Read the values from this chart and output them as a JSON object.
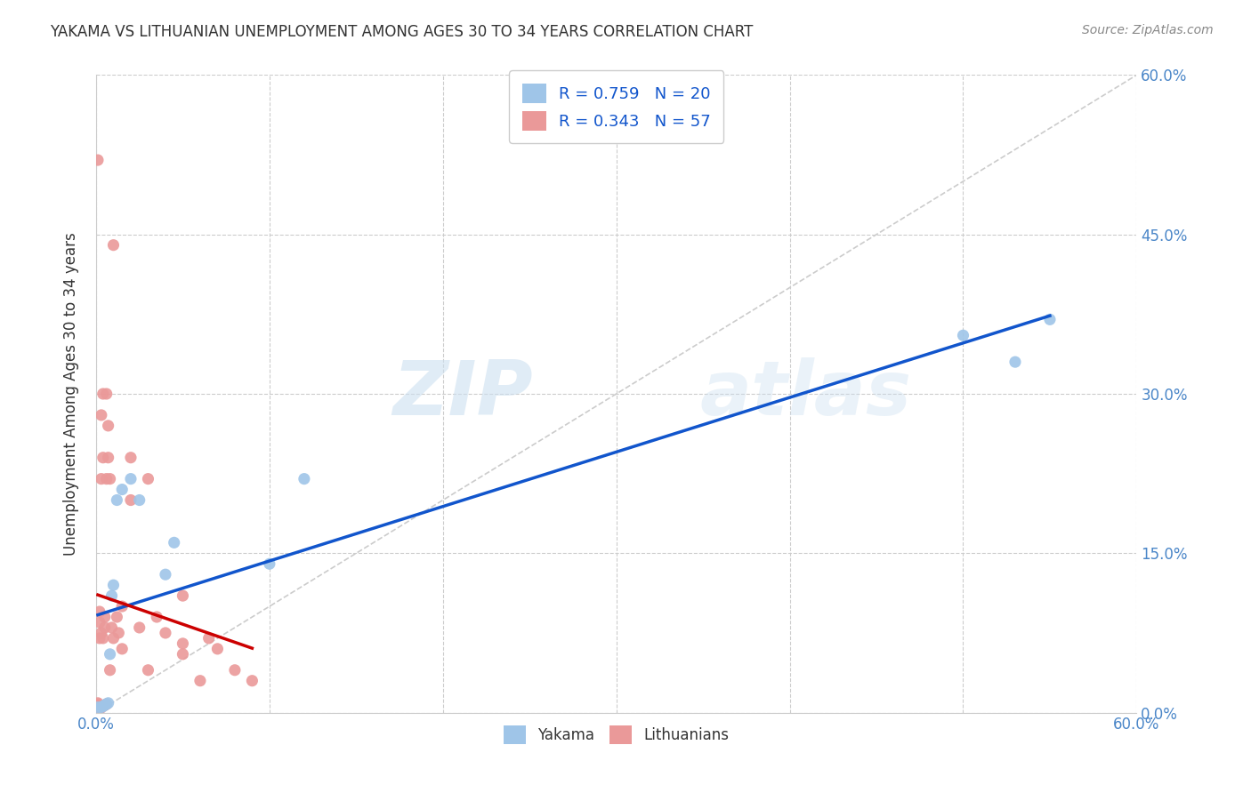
{
  "title": "YAKAMA VS LITHUANIAN UNEMPLOYMENT AMONG AGES 30 TO 34 YEARS CORRELATION CHART",
  "source": "Source: ZipAtlas.com",
  "ylabel": "Unemployment Among Ages 30 to 34 years",
  "xlim": [
    0.0,
    0.6
  ],
  "ylim": [
    0.0,
    0.6
  ],
  "yakama_color": "#9fc5e8",
  "lithuanian_color": "#ea9999",
  "yakama_line_color": "#1155cc",
  "lithuanian_line_color": "#cc0000",
  "diagonal_color": "#cccccc",
  "background_color": "#ffffff",
  "grid_color": "#cccccc",
  "legend_R_color": "#1155cc",
  "watermark_zip": "ZIP",
  "watermark_atlas": "atlas",
  "R_yakama": 0.759,
  "N_yakama": 20,
  "R_lithuanian": 0.343,
  "N_lithuanian": 57,
  "yakama_x": [
    0.001,
    0.003,
    0.004,
    0.005,
    0.006,
    0.007,
    0.008,
    0.009,
    0.01,
    0.012,
    0.015,
    0.02,
    0.025,
    0.04,
    0.045,
    0.1,
    0.12,
    0.5,
    0.53,
    0.55
  ],
  "yakama_y": [
    0.005,
    0.005,
    0.006,
    0.007,
    0.008,
    0.009,
    0.055,
    0.11,
    0.12,
    0.2,
    0.21,
    0.22,
    0.2,
    0.13,
    0.16,
    0.14,
    0.22,
    0.355,
    0.33,
    0.37
  ],
  "lithuanian_x": [
    0.001,
    0.001,
    0.001,
    0.001,
    0.001,
    0.001,
    0.001,
    0.001,
    0.001,
    0.001,
    0.002,
    0.002,
    0.002,
    0.002,
    0.002,
    0.002,
    0.003,
    0.003,
    0.003,
    0.003,
    0.003,
    0.004,
    0.004,
    0.004,
    0.004,
    0.005,
    0.005,
    0.005,
    0.006,
    0.006,
    0.006,
    0.007,
    0.007,
    0.008,
    0.008,
    0.009,
    0.01,
    0.01,
    0.012,
    0.013,
    0.015,
    0.015,
    0.02,
    0.02,
    0.025,
    0.03,
    0.03,
    0.035,
    0.04,
    0.05,
    0.05,
    0.05,
    0.06,
    0.065,
    0.07,
    0.08,
    0.09
  ],
  "lithuanian_y": [
    0.002,
    0.003,
    0.004,
    0.005,
    0.006,
    0.007,
    0.007,
    0.008,
    0.009,
    0.52,
    0.003,
    0.005,
    0.006,
    0.07,
    0.085,
    0.095,
    0.005,
    0.006,
    0.075,
    0.22,
    0.28,
    0.006,
    0.07,
    0.24,
    0.3,
    0.007,
    0.08,
    0.09,
    0.008,
    0.22,
    0.3,
    0.24,
    0.27,
    0.04,
    0.22,
    0.08,
    0.07,
    0.44,
    0.09,
    0.075,
    0.06,
    0.1,
    0.2,
    0.24,
    0.08,
    0.04,
    0.22,
    0.09,
    0.075,
    0.055,
    0.065,
    0.11,
    0.03,
    0.07,
    0.06,
    0.04,
    0.03
  ]
}
